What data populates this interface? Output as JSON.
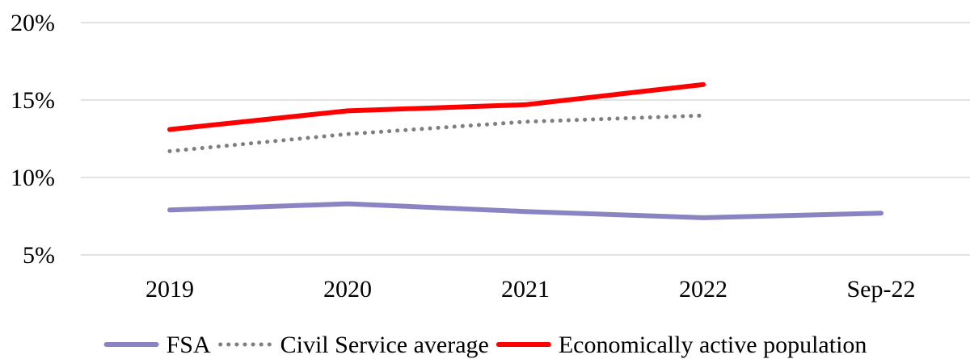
{
  "chart_data": {
    "type": "line",
    "title": "",
    "xlabel": "",
    "ylabel": "",
    "categories": [
      "2019",
      "2020",
      "2021",
      "2022",
      "Sep-22"
    ],
    "yticks": [
      "5%",
      "10%",
      "15%",
      "20%"
    ],
    "ytick_values": [
      5,
      10,
      15,
      20
    ],
    "ylim": [
      5,
      20
    ],
    "grid": true,
    "legend_position": "bottom",
    "series": [
      {
        "name": "FSA",
        "values": [
          7.9,
          8.3,
          7.8,
          7.4,
          7.7
        ],
        "color": "#8b84c2",
        "style": "solid"
      },
      {
        "name": "Civil Service average",
        "values": [
          11.7,
          12.8,
          13.6,
          14.0,
          null
        ],
        "color": "#7f7f7f",
        "style": "dotted"
      },
      {
        "name": "Economically active population",
        "values": [
          13.1,
          14.3,
          14.7,
          16.0,
          null
        ],
        "color": "#ff0000",
        "style": "solid"
      }
    ]
  }
}
